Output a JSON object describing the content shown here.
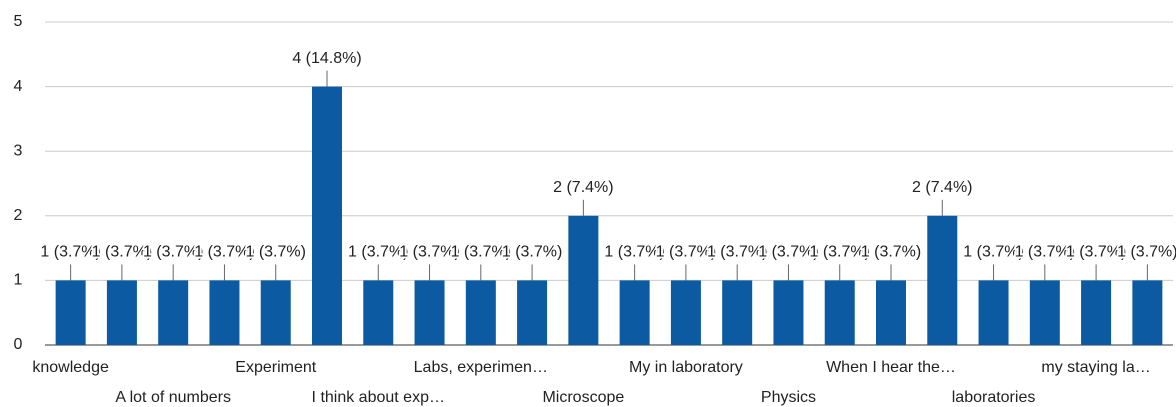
{
  "chart_data": {
    "type": "bar",
    "categories": [
      "knowledge",
      null,
      "A lot of numbers",
      null,
      "Experiment",
      null,
      "I think about exp…",
      null,
      "Labs, experimen…",
      null,
      "Microscope",
      null,
      "My in laboratory",
      null,
      "Physics",
      null,
      "When I hear the…",
      null,
      "laboratories",
      null,
      "my staying la…",
      null
    ],
    "values": [
      1,
      1,
      1,
      1,
      1,
      4,
      1,
      1,
      1,
      1,
      2,
      1,
      1,
      1,
      1,
      1,
      1,
      2,
      1,
      1,
      1,
      1
    ],
    "value_labels": [
      "1 (3.7%)",
      "1 (3.7%)",
      "1 (3.7%)",
      "1 (3.7%)",
      "1 (3.7%)",
      "4 (14.8%)",
      "1 (3.7%)",
      "1 (3.7%)",
      "1 (3.7%)",
      "1 (3.7%)",
      "2 (7.4%)",
      "1 (3.7%)",
      "1 (3.7%)",
      "1 (3.7%)",
      "1 (3.7%)",
      "1 (3.7%)",
      "1 (3.7%)",
      "2 (7.4%)",
      "1 (3.7%)",
      "1 (3.7%)",
      "1 (3.7%)",
      "1 (3.7%)"
    ],
    "color": "#0b5aa2",
    "ylim": [
      0,
      5
    ],
    "yticks": [
      0,
      1,
      2,
      3,
      4,
      5
    ],
    "grid": true
  }
}
